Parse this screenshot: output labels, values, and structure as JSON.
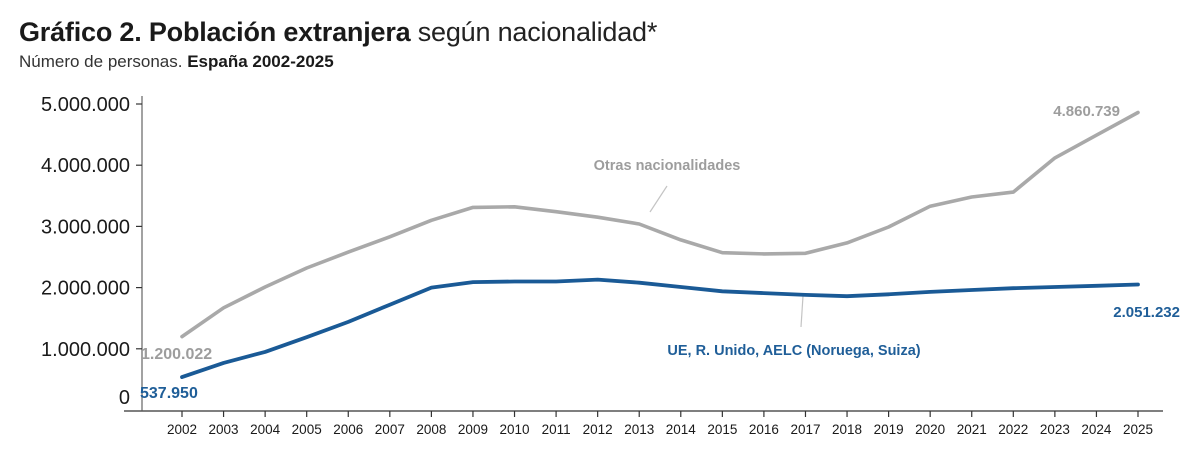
{
  "header": {
    "title_bold": "Gráfico 2. Población extranjera",
    "title_light": " según nacionalidad*",
    "subtitle_light": "Número de personas. ",
    "subtitle_bold": "España 2002-2025"
  },
  "chart_data": {
    "type": "line",
    "title": "Gráfico 2. Población extranjera según nacionalidad*",
    "subtitle": "Número de personas. España 2002-2025",
    "xlabel": "",
    "ylabel": "",
    "ylim": [
      0,
      5000000
    ],
    "grid": false,
    "legend": "inline-labels",
    "x": [
      "2002",
      "2003",
      "2004",
      "2005",
      "2006",
      "2007",
      "2008",
      "2009",
      "2010",
      "2011",
      "2012",
      "2013",
      "2014",
      "2015",
      "2016",
      "2017",
      "2018",
      "2019",
      "2020",
      "2021",
      "2022",
      "2023",
      "2024",
      "2025"
    ],
    "yticks": [
      0,
      1000000,
      2000000,
      3000000,
      4000000,
      5000000
    ],
    "ytick_labels": [
      "0",
      "1.000.000",
      "2.000.000",
      "3.000.000",
      "4.000.000",
      "5.000.000"
    ],
    "series": [
      {
        "name": "Otras nacionalidades",
        "color": "#a9a9a9",
        "label_color": "#9d9d9d",
        "values": [
          1200022,
          1670000,
          2010000,
          2320000,
          2580000,
          2830000,
          3100000,
          3310000,
          3320000,
          3240000,
          3150000,
          3040000,
          2780000,
          2570000,
          2550000,
          2560000,
          2730000,
          2990000,
          3330000,
          3480000,
          3560000,
          4120000,
          4490000,
          4860739
        ],
        "start_label": "1.200.022",
        "end_label": "4.860.739"
      },
      {
        "name": "UE, R. Unido, AELC (Noruega, Suiza)",
        "color": "#1a5a96",
        "label_color": "#1f5e98",
        "values": [
          537950,
          770000,
          950000,
          1190000,
          1440000,
          1720000,
          2000000,
          2090000,
          2100000,
          2100000,
          2130000,
          2080000,
          2010000,
          1940000,
          1910000,
          1880000,
          1860000,
          1890000,
          1930000,
          1960000,
          1990000,
          2010000,
          2030000,
          2051232
        ],
        "start_label": "537.950",
        "end_label": "2.051.232"
      }
    ],
    "annotations": [
      {
        "text": "Otras nacionalidades",
        "series": 0
      },
      {
        "text": "UE, R. Unido, AELC (Noruega, Suiza)",
        "series": 1
      }
    ]
  }
}
